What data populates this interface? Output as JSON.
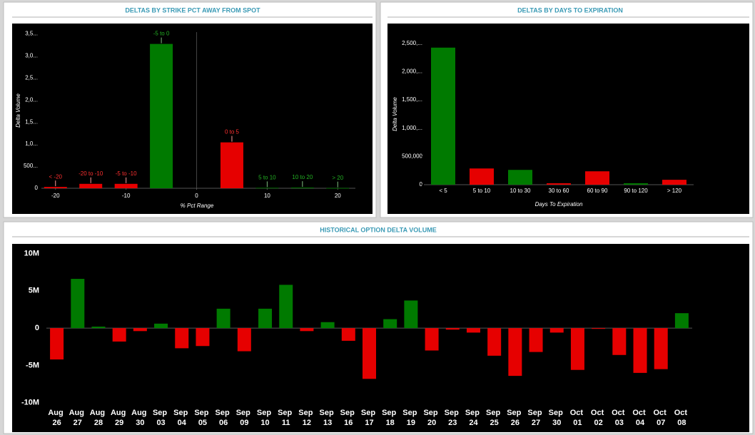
{
  "chart_data": [
    {
      "type": "bar",
      "title": "DELTAS BY STRIKE PCT AWAY FROM SPOT",
      "y_label": "Delta Volume",
      "x_label": "% Pct Range",
      "categories": [
        "< -20",
        "-20 to -10",
        "-5 to -10",
        "-5 to 0",
        "0 to 5",
        "5 to 10",
        "10 to 20",
        "> 20"
      ],
      "x": [
        -20,
        -15,
        -10,
        -5,
        5,
        10,
        15,
        20
      ],
      "values": [
        30,
        100,
        100,
        3270,
        1040,
        10,
        15,
        5
      ],
      "colors": [
        "#e60000",
        "#e60000",
        "#e60000",
        "#007a00",
        "#e60000",
        "#007a00",
        "#007a00",
        "#007a00"
      ],
      "xlim": [
        -22,
        22.5
      ],
      "xticks": [
        -20,
        -10,
        0,
        10,
        20
      ],
      "ylim": [
        0,
        3700
      ],
      "yticks": [
        0,
        {
          "value": 500,
          "label": "500..."
        },
        {
          "value": 1000,
          "label": "1,0..."
        },
        {
          "value": 1500,
          "label": "1,5..."
        },
        {
          "value": 2000,
          "label": "2,0..."
        },
        {
          "value": 2500,
          "label": "2,5..."
        },
        {
          "value": 3000,
          "label": "3,0..."
        },
        {
          "value": 3500,
          "label": "3,5..."
        }
      ]
    },
    {
      "type": "bar",
      "title": "DELTAS BY DAYS TO EXPIRATION",
      "y_label": "Delta Volume",
      "x_label": "Days To Expiration",
      "categories": [
        "< 5",
        "5 to 10",
        "10 to 30",
        "30 to 60",
        "60 to 90",
        "90 to 120",
        "> 120"
      ],
      "values": [
        2425000,
        287000,
        262000,
        25000,
        237000,
        25000,
        87000
      ],
      "colors": [
        "#007a00",
        "#e60000",
        "#007a00",
        "#e60000",
        "#e60000",
        "#007a00",
        "#e60000"
      ],
      "ylim": [
        0,
        2700000
      ],
      "yticks": [
        0,
        {
          "value": 500000,
          "label": "500,000"
        },
        {
          "value": 1000000,
          "label": "1,000,..."
        },
        {
          "value": 1500000,
          "label": "1,500,..."
        },
        {
          "value": 2000000,
          "label": "2,000,..."
        },
        {
          "value": 2500000,
          "label": "2,500,..."
        }
      ]
    },
    {
      "type": "bar",
      "title": "HISTORICAL OPTION DELTA VOLUME",
      "categories": [
        "Aug 26",
        "Aug 27",
        "Aug 28",
        "Aug 29",
        "Aug 30",
        "Sep 03",
        "Sep 04",
        "Sep 05",
        "Sep 06",
        "Sep 09",
        "Sep 10",
        "Sep 11",
        "Sep 12",
        "Sep 13",
        "Sep 16",
        "Sep 17",
        "Sep 18",
        "Sep 19",
        "Sep 20",
        "Sep 23",
        "Sep 24",
        "Sep 25",
        "Sep 26",
        "Sep 27",
        "Sep 30",
        "Oct 01",
        "Oct 02",
        "Oct 03",
        "Oct 04",
        "Oct 07",
        "Oct 08"
      ],
      "values": [
        -4200000,
        6600000,
        200000,
        -1800000,
        -400000,
        600000,
        -2700000,
        -2400000,
        2600000,
        -3100000,
        2600000,
        5800000,
        -400000,
        800000,
        -1700000,
        -6800000,
        1200000,
        3700000,
        -3000000,
        -200000,
        -600000,
        -3700000,
        -6400000,
        -3200000,
        -600000,
        -5600000,
        -100000,
        -3600000,
        -6000000,
        -5500000,
        2000000
      ],
      "colors": [
        "#e60000",
        "#007a00",
        "#007a00",
        "#e60000",
        "#e60000",
        "#007a00",
        "#e60000",
        "#e60000",
        "#007a00",
        "#e60000",
        "#007a00",
        "#007a00",
        "#e60000",
        "#007a00",
        "#e60000",
        "#e60000",
        "#007a00",
        "#007a00",
        "#e60000",
        "#e60000",
        "#e60000",
        "#e60000",
        "#e60000",
        "#e60000",
        "#e60000",
        "#e60000",
        "#e60000",
        "#e60000",
        "#e60000",
        "#e60000",
        "#007a00"
      ],
      "ylim": [
        -10500000,
        11000000
      ],
      "yticks": [
        {
          "value": -10000000,
          "label": "-10M"
        },
        {
          "value": -5000000,
          "label": "-5M"
        },
        0,
        {
          "value": 5000000,
          "label": "5M"
        },
        {
          "value": 10000000,
          "label": "10M"
        }
      ]
    }
  ]
}
